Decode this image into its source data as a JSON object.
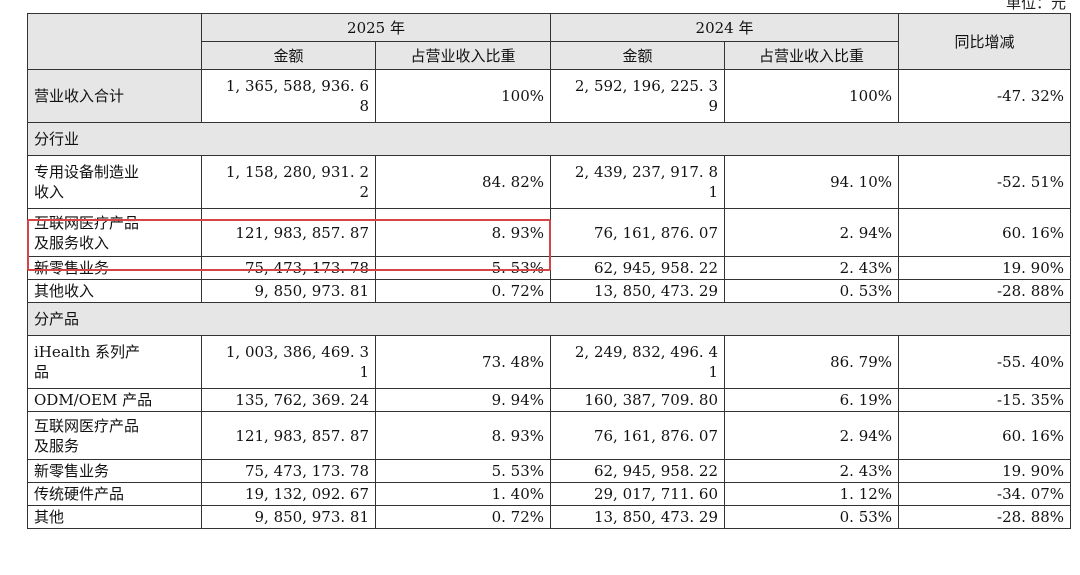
{
  "unit_label": "单位：元",
  "header": {
    "year1": "2025 年",
    "year2": "2024 年",
    "yoy": "同比增减",
    "amount": "金额",
    "share": "占营业收入比重"
  },
  "total": {
    "label": "营业收入合计",
    "a1": "1, 365, 588, 936. 6\n8",
    "s1": "100%",
    "a2": "2, 592, 196, 225. 3\n9",
    "s2": "100%",
    "yoy": "-47. 32%"
  },
  "sections": [
    {
      "title": "分行业",
      "rows": [
        {
          "label": "专用设备制造业\n收入",
          "a1": "1, 158, 280, 931. 2\n2",
          "s1": "84. 82%",
          "a2": "2, 439, 237, 917. 8\n1",
          "s2": "94. 10%",
          "yoy": "-52. 51%"
        },
        {
          "label": "互联网医疗产品\n及服务收入",
          "a1": "121, 983, 857. 87",
          "s1": "8. 93%",
          "a2": "76, 161, 876. 07",
          "s2": "2. 94%",
          "yoy": "60. 16%"
        },
        {
          "label": "新零售业务",
          "a1": "75, 473, 173. 78",
          "s1": "5. 53%",
          "a2": "62, 945, 958. 22",
          "s2": "2. 43%",
          "yoy": "19. 90%"
        },
        {
          "label": "其他收入",
          "a1": "9, 850, 973. 81",
          "s1": "0. 72%",
          "a2": "13, 850, 473. 29",
          "s2": "0. 53%",
          "yoy": "-28. 88%"
        }
      ]
    },
    {
      "title": "分产品",
      "rows": [
        {
          "label": "iHealth 系列产\n品",
          "a1": "1, 003, 386, 469. 3\n1",
          "s1": "73. 48%",
          "a2": "2, 249, 832, 496. 4\n1",
          "s2": "86. 79%",
          "yoy": "-55. 40%"
        },
        {
          "label": "ODM/OEM 产品",
          "a1": "135, 762, 369. 24",
          "s1": "9. 94%",
          "a2": "160, 387, 709. 80",
          "s2": "6. 19%",
          "yoy": "-15. 35%"
        },
        {
          "label": "互联网医疗产品\n及服务",
          "a1": "121, 983, 857. 87",
          "s1": "8. 93%",
          "a2": "76, 161, 876. 07",
          "s2": "2. 94%",
          "yoy": "60. 16%"
        },
        {
          "label": "新零售业务",
          "a1": "75, 473, 173. 78",
          "s1": "5. 53%",
          "a2": "62, 945, 958. 22",
          "s2": "2. 43%",
          "yoy": "19. 90%"
        },
        {
          "label": "传统硬件产品",
          "a1": "19, 132, 092. 67",
          "s1": "1. 40%",
          "a2": "29, 017, 711. 60",
          "s2": "1. 12%",
          "yoy": "-34. 07%"
        },
        {
          "label": "其他",
          "a1": "9, 850, 973. 81",
          "s1": "0. 72%",
          "a2": "13, 850, 473. 29",
          "s2": "0. 53%",
          "yoy": "-28. 88%"
        }
      ]
    }
  ],
  "highlight_color": "#d64545"
}
